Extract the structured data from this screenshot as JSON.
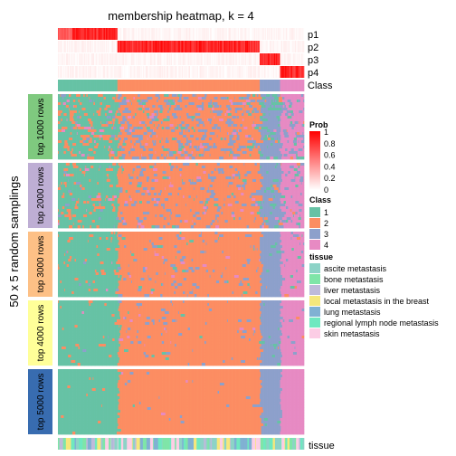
{
  "chart_data": {
    "type": "heatmap",
    "title": "membership heatmap, k = 4",
    "ylabel": "50 x 5 random samplings",
    "row_annotations": [
      "p1",
      "p2",
      "p3",
      "p4",
      "Class"
    ],
    "bottom_annotation": "tissue",
    "groups": [
      "top 1000 rows",
      "top 2000 rows",
      "top 3000 rows",
      "top 4000 rows",
      "top 5000 rows"
    ],
    "group_colors": [
      "#7FC97F",
      "#BEAED4",
      "#FDC086",
      "#FFFF99",
      "#386CB0"
    ],
    "class_colors": {
      "1": "#66C2A5",
      "2": "#FC8D62",
      "3": "#8DA0CB",
      "4": "#E78AC3"
    },
    "column_classes": [
      1,
      1,
      1,
      1,
      1,
      1,
      1,
      1,
      1,
      1,
      1,
      1,
      1,
      1,
      1,
      1,
      1,
      1,
      1,
      1,
      1,
      1,
      1,
      1,
      1,
      1,
      1,
      1,
      1,
      1,
      1,
      1,
      1,
      1,
      1,
      1,
      1,
      1,
      1,
      1,
      1,
      1,
      1,
      1,
      1,
      1,
      1,
      1,
      1,
      1,
      1,
      1,
      1,
      1,
      1,
      1,
      1,
      1,
      1,
      1,
      1,
      1,
      1,
      1,
      1,
      1,
      1,
      1,
      1,
      1,
      1,
      1,
      1,
      1,
      1,
      1,
      1,
      1,
      1,
      1,
      1,
      1,
      2,
      2,
      2,
      2,
      2,
      2,
      2,
      2,
      2,
      2,
      2,
      2,
      2,
      2,
      2,
      2,
      2,
      2,
      2,
      2,
      2,
      2,
      2,
      2,
      2,
      2,
      2,
      2,
      2,
      2,
      2,
      2,
      2,
      2,
      2,
      2,
      2,
      2,
      2,
      2,
      2,
      2,
      2,
      2,
      2,
      2,
      2,
      2,
      2,
      2,
      2,
      2,
      2,
      2,
      2,
      2,
      2,
      2,
      2,
      2,
      2,
      2,
      2,
      2,
      2,
      2,
      2,
      2,
      2,
      2,
      2,
      2,
      2,
      2,
      2,
      2,
      2,
      2,
      2,
      2,
      2,
      2,
      2,
      2,
      2,
      2,
      2,
      2,
      2,
      2,
      2,
      2,
      2,
      2,
      2,
      2,
      2,
      2,
      2,
      2,
      2,
      2,
      2,
      2,
      2,
      2,
      2,
      2,
      2,
      2,
      2,
      2,
      2,
      2,
      2,
      2,
      2,
      2,
      2,
      2,
      2,
      2,
      2,
      2,
      2,
      2,
      2,
      2,
      2,
      2,
      2,
      2,
      2,
      2,
      2,
      2,
      2,
      2,
      2,
      2,
      2,
      2,
      2,
      2,
      2,
      2,
      2,
      2,
      2,
      2,
      2,
      2,
      2,
      2,
      2,
      2,
      2,
      2,
      2,
      2,
      2,
      2,
      2,
      2,
      2,
      2,
      2,
      2,
      2,
      2,
      2,
      2,
      2,
      2,
      2,
      2,
      2,
      2,
      2,
      2,
      2,
      2,
      2,
      2,
      2,
      2,
      2,
      2,
      2,
      2,
      2,
      2,
      2,
      2,
      2,
      2,
      3,
      3,
      3,
      3,
      3,
      3,
      3,
      3,
      3,
      3,
      3,
      3,
      3,
      3,
      3,
      3,
      3,
      3,
      3,
      3,
      3,
      3,
      3,
      3,
      3,
      3,
      3,
      3,
      4,
      4,
      4,
      4,
      4,
      4,
      4,
      4,
      4,
      4,
      4,
      4,
      4,
      4,
      4,
      4,
      4,
      4,
      4,
      4,
      4,
      4,
      4,
      4,
      4,
      4,
      4,
      4,
      4,
      4,
      4,
      4,
      4
    ],
    "prob_legend": {
      "title": "Prob",
      "ticks": [
        "1",
        "0.8",
        "0.6",
        "0.4",
        "0.2",
        "0"
      ],
      "colors": [
        "#FF0000",
        "#FFFFFF"
      ]
    },
    "class_legend": {
      "title": "Class",
      "labels": [
        "1",
        "2",
        "3",
        "4"
      ]
    },
    "tissue_legend": {
      "title": "tissue",
      "items": [
        {
          "label": "ascite  metastasis",
          "color": "#8DD3C7"
        },
        {
          "label": "bone  metastasis",
          "color": "#7FE5A8"
        },
        {
          "label": "liver metastasis",
          "color": "#BEBADA"
        },
        {
          "label": "local metastasis in the breast",
          "color": "#F5E77C"
        },
        {
          "label": "lung  metastasis",
          "color": "#80B1D3"
        },
        {
          "label": "regional lymph node metastasis",
          "color": "#6EE8C0"
        },
        {
          "label": "skin metastasis",
          "color": "#FCCDE5"
        }
      ]
    }
  }
}
